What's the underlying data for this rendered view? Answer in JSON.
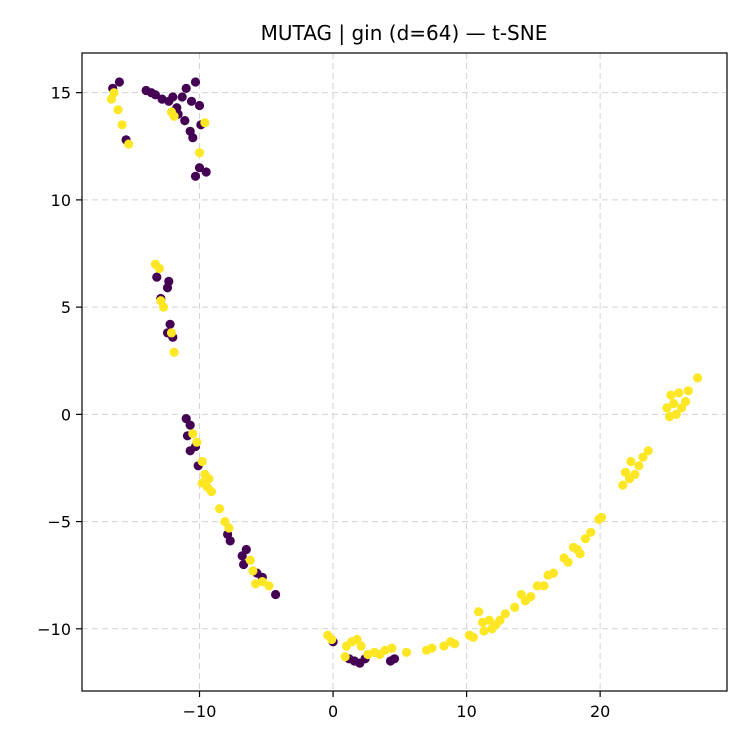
{
  "chart_data": {
    "type": "scatter",
    "title": "MUTAG | gin (d=64) — t-SNE",
    "xlabel": "",
    "ylabel": "",
    "xlim": [
      -18.8,
      29.5
    ],
    "ylim": [
      -12.9,
      16.85
    ],
    "grid": true,
    "legend": "none",
    "x_ticks": [
      -10,
      0,
      10,
      20
    ],
    "x_tick_labels": [
      "−10",
      "0",
      "10",
      "20"
    ],
    "y_ticks": [
      -10,
      -5,
      0,
      5,
      10,
      15
    ],
    "y_tick_labels": [
      "−10",
      "−5",
      "0",
      "5",
      "10",
      "15"
    ],
    "colors": {
      "class_0": "#440154",
      "class_1": "#fde725"
    },
    "series": [
      {
        "color": "#440154",
        "points": [
          [
            -16.5,
            15.2
          ],
          [
            -16.0,
            15.5
          ],
          [
            -15.5,
            12.8
          ],
          [
            -14.0,
            15.1
          ],
          [
            -13.6,
            15.0
          ],
          [
            -13.3,
            14.9
          ],
          [
            -12.8,
            14.7
          ],
          [
            -12.3,
            14.6
          ],
          [
            -12.0,
            14.8
          ],
          [
            -11.7,
            14.3
          ],
          [
            -11.3,
            14.8
          ],
          [
            -11.0,
            15.2
          ],
          [
            -10.6,
            14.6
          ],
          [
            -10.3,
            15.5
          ],
          [
            -10.0,
            14.4
          ],
          [
            -11.6,
            14.0
          ],
          [
            -11.1,
            13.7
          ],
          [
            -10.7,
            13.2
          ],
          [
            -10.5,
            12.9
          ],
          [
            -9.9,
            13.5
          ],
          [
            -10.0,
            11.5
          ],
          [
            -9.5,
            11.3
          ],
          [
            -10.3,
            11.1
          ],
          [
            -13.2,
            6.4
          ],
          [
            -12.3,
            6.2
          ],
          [
            -12.4,
            5.9
          ],
          [
            -12.9,
            5.4
          ],
          [
            -12.2,
            4.2
          ],
          [
            -12.4,
            3.8
          ],
          [
            -12.0,
            3.6
          ],
          [
            -11.0,
            -0.2
          ],
          [
            -10.7,
            -0.5
          ],
          [
            -10.9,
            -1.0
          ],
          [
            -10.3,
            -1.5
          ],
          [
            -10.7,
            -1.7
          ],
          [
            -10.1,
            -2.4
          ],
          [
            -7.9,
            -5.6
          ],
          [
            -7.7,
            -5.9
          ],
          [
            -6.8,
            -6.6
          ],
          [
            -6.5,
            -6.3
          ],
          [
            -6.7,
            -7.0
          ],
          [
            -5.7,
            -7.4
          ],
          [
            -5.3,
            -7.6
          ],
          [
            -4.3,
            -8.4
          ],
          [
            0.0,
            -10.6
          ],
          [
            1.2,
            -11.4
          ],
          [
            1.6,
            -11.5
          ],
          [
            2.0,
            -11.6
          ],
          [
            2.4,
            -11.4
          ],
          [
            4.3,
            -11.5
          ],
          [
            4.6,
            -11.4
          ]
        ]
      },
      {
        "color": "#fde725",
        "points": [
          [
            -16.6,
            14.7
          ],
          [
            -16.4,
            15.0
          ],
          [
            -16.1,
            14.2
          ],
          [
            -15.8,
            13.5
          ],
          [
            -15.3,
            12.6
          ],
          [
            -12.1,
            14.1
          ],
          [
            -11.9,
            13.9
          ],
          [
            -9.6,
            13.6
          ],
          [
            -10.0,
            12.2
          ],
          [
            -13.3,
            7.0
          ],
          [
            -13.0,
            6.8
          ],
          [
            -12.9,
            5.3
          ],
          [
            -12.7,
            5.0
          ],
          [
            -12.1,
            3.8
          ],
          [
            -11.9,
            2.9
          ],
          [
            -10.5,
            -0.9
          ],
          [
            -10.2,
            -1.3
          ],
          [
            -9.8,
            -2.2
          ],
          [
            -9.6,
            -2.8
          ],
          [
            -9.3,
            -3.0
          ],
          [
            -9.8,
            -3.2
          ],
          [
            -9.4,
            -3.4
          ],
          [
            -9.1,
            -3.6
          ],
          [
            -8.5,
            -4.4
          ],
          [
            -8.1,
            -5.0
          ],
          [
            -7.8,
            -5.3
          ],
          [
            -6.2,
            -6.8
          ],
          [
            -6.0,
            -7.3
          ],
          [
            -5.8,
            -7.9
          ],
          [
            -5.3,
            -7.8
          ],
          [
            -4.8,
            -8.0
          ],
          [
            -0.4,
            -10.3
          ],
          [
            -0.1,
            -10.5
          ],
          [
            0.9,
            -11.3
          ],
          [
            1.0,
            -10.8
          ],
          [
            1.4,
            -10.6
          ],
          [
            1.8,
            -10.5
          ],
          [
            2.1,
            -10.8
          ],
          [
            2.6,
            -11.2
          ],
          [
            3.1,
            -11.1
          ],
          [
            3.5,
            -11.2
          ],
          [
            3.9,
            -11.0
          ],
          [
            4.4,
            -10.9
          ],
          [
            5.5,
            -11.1
          ],
          [
            7.0,
            -11.0
          ],
          [
            7.4,
            -10.9
          ],
          [
            8.3,
            -10.8
          ],
          [
            8.8,
            -10.6
          ],
          [
            9.1,
            -10.7
          ],
          [
            10.2,
            -10.3
          ],
          [
            10.5,
            -10.4
          ],
          [
            10.9,
            -9.2
          ],
          [
            11.2,
            -9.7
          ],
          [
            11.3,
            -10.1
          ],
          [
            11.7,
            -9.6
          ],
          [
            11.9,
            -10.0
          ],
          [
            12.2,
            -9.8
          ],
          [
            12.5,
            -9.6
          ],
          [
            12.9,
            -9.3
          ],
          [
            13.6,
            -9.0
          ],
          [
            14.1,
            -8.4
          ],
          [
            14.4,
            -8.7
          ],
          [
            14.8,
            -8.5
          ],
          [
            15.3,
            -8.0
          ],
          [
            15.8,
            -8.0
          ],
          [
            16.1,
            -7.5
          ],
          [
            16.5,
            -7.4
          ],
          [
            17.3,
            -6.7
          ],
          [
            17.6,
            -6.9
          ],
          [
            18.0,
            -6.2
          ],
          [
            18.3,
            -6.3
          ],
          [
            18.5,
            -6.5
          ],
          [
            18.9,
            -5.8
          ],
          [
            19.3,
            -5.5
          ],
          [
            19.9,
            -4.9
          ],
          [
            20.1,
            -4.8
          ],
          [
            21.7,
            -3.3
          ],
          [
            21.9,
            -2.7
          ],
          [
            22.2,
            -3.0
          ],
          [
            22.3,
            -2.2
          ],
          [
            22.6,
            -2.8
          ],
          [
            22.9,
            -2.4
          ],
          [
            23.2,
            -2.0
          ],
          [
            23.6,
            -1.7
          ],
          [
            25.0,
            0.3
          ],
          [
            25.2,
            -0.1
          ],
          [
            25.3,
            0.9
          ],
          [
            25.5,
            0.5
          ],
          [
            25.7,
            0.0
          ],
          [
            25.9,
            1.0
          ],
          [
            26.1,
            0.3
          ],
          [
            26.4,
            0.6
          ],
          [
            26.6,
            1.1
          ],
          [
            27.3,
            1.7
          ]
        ]
      }
    ]
  }
}
